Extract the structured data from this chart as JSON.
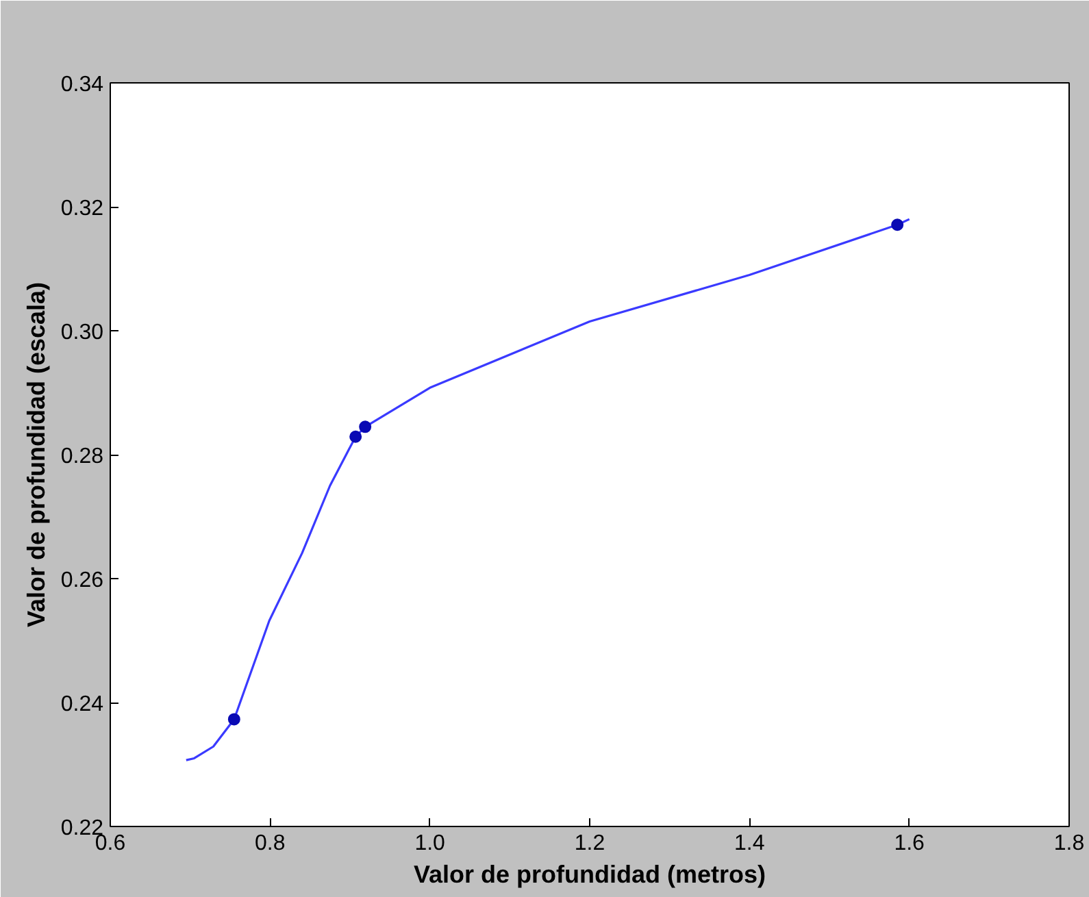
{
  "chart_data": {
    "type": "line",
    "xlabel": "Valor de profundidad (metros)",
    "ylabel": "Valor de profundidad (escala)",
    "xlim": [
      0.6,
      1.8
    ],
    "ylim": [
      0.22,
      0.34
    ],
    "xticks": [
      {
        "value": 0.6,
        "label": "0.6"
      },
      {
        "value": 0.8,
        "label": "0.8"
      },
      {
        "value": 1.0,
        "label": "1.0"
      },
      {
        "value": 1.2,
        "label": "1.2"
      },
      {
        "value": 1.4,
        "label": "1.4"
      },
      {
        "value": 1.6,
        "label": "1.6"
      },
      {
        "value": 1.8,
        "label": "1.8"
      }
    ],
    "yticks": [
      {
        "value": 0.22,
        "label": "0.22"
      },
      {
        "value": 0.24,
        "label": "0.24"
      },
      {
        "value": 0.26,
        "label": "0.26"
      },
      {
        "value": 0.28,
        "label": "0.28"
      },
      {
        "value": 0.3,
        "label": "0.30"
      },
      {
        "value": 0.32,
        "label": "0.32"
      },
      {
        "value": 0.34,
        "label": "0.34"
      }
    ],
    "grid": false,
    "series": [
      {
        "marker": "none",
        "color": "#3a3aff",
        "x": [
          0.695,
          0.705,
          0.729,
          0.755,
          0.799,
          0.84,
          0.875,
          0.907,
          0.919,
          1.0,
          1.2,
          1.4,
          1.585,
          1.6
        ],
        "values": [
          0.2307,
          0.231,
          0.2329,
          0.2373,
          0.2532,
          0.2641,
          0.275,
          0.2829,
          0.2845,
          0.2908,
          0.3015,
          0.309,
          0.3171,
          0.318
        ]
      },
      {
        "type": "scatter",
        "marker": "circle",
        "color": "#0a0ab4",
        "x": [
          0.755,
          0.907,
          0.919,
          1.585
        ],
        "values": [
          0.2373,
          0.2829,
          0.2845,
          0.3171
        ]
      }
    ]
  }
}
